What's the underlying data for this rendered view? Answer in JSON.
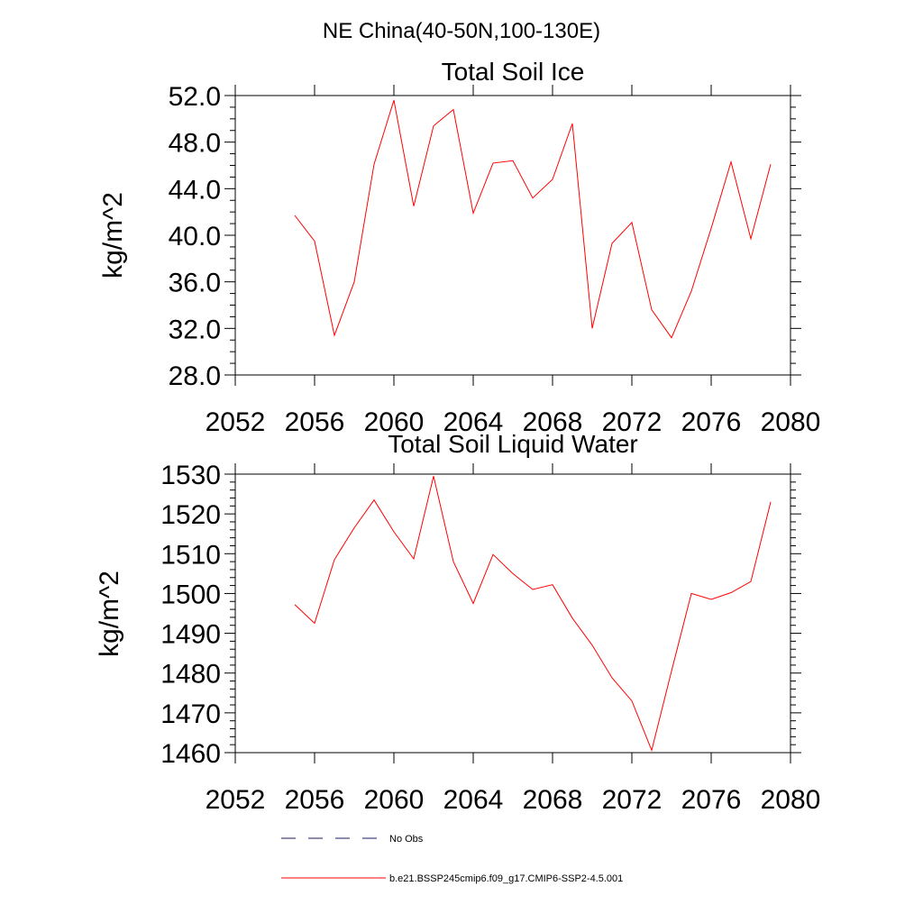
{
  "figure": {
    "title": "NE China(40-50N,100-130E)"
  },
  "legend": {
    "items": [
      {
        "label": "No Obs",
        "style": "dashed",
        "color": "#1a1a5e"
      },
      {
        "label": "b.e21.BSSP245cmip6.f09_g17.CMIP6-SSP2-4.5.001",
        "style": "solid",
        "color": "#ff0000"
      }
    ]
  },
  "chart_data": [
    {
      "type": "line",
      "title": "Total Soil Ice",
      "xlabel": "",
      "ylabel": "kg/m^2",
      "xlim": [
        2052,
        2080
      ],
      "ylim": [
        28,
        52
      ],
      "x_ticks": [
        "2052",
        "2056",
        "2060",
        "2064",
        "2068",
        "2072",
        "2076",
        "2080"
      ],
      "y_ticks": [
        "28.0",
        "32.0",
        "36.0",
        "40.0",
        "44.0",
        "48.0",
        "52.0"
      ],
      "grid": false,
      "series": [
        {
          "color": "#ff0000",
          "x": [
            2055,
            2056,
            2057,
            2058,
            2059,
            2060,
            2061,
            2062,
            2063,
            2064,
            2065,
            2066,
            2067,
            2068,
            2069,
            2070,
            2071,
            2072,
            2073,
            2074,
            2075,
            2076,
            2077,
            2078,
            2079
          ],
          "y": [
            41.7,
            39.5,
            31.4,
            36.0,
            46.1,
            51.6,
            42.5,
            49.4,
            50.8,
            41.9,
            46.2,
            46.4,
            43.2,
            44.8,
            49.6,
            32.0,
            39.3,
            41.1,
            33.6,
            31.2,
            35.2,
            40.6,
            46.3,
            39.7,
            46.1
          ]
        }
      ]
    },
    {
      "type": "line",
      "title": "Total Soil Liquid Water",
      "xlabel": "",
      "ylabel": "kg/m^2",
      "xlim": [
        2052,
        2080
      ],
      "ylim": [
        1460,
        1530
      ],
      "x_ticks": [
        "2052",
        "2056",
        "2060",
        "2064",
        "2068",
        "2072",
        "2076",
        "2080"
      ],
      "y_ticks": [
        "1460",
        "1470",
        "1480",
        "1490",
        "1500",
        "1510",
        "1520",
        "1530"
      ],
      "grid": false,
      "series": [
        {
          "color": "#ff0000",
          "x": [
            2055,
            2056,
            2057,
            2058,
            2059,
            2060,
            2061,
            2062,
            2063,
            2064,
            2065,
            2066,
            2067,
            2068,
            2069,
            2070,
            2071,
            2072,
            2073,
            2074,
            2075,
            2076,
            2077,
            2078,
            2079
          ],
          "y": [
            1497.2,
            1492.5,
            1508.5,
            1516.5,
            1523.5,
            1515.5,
            1508.7,
            1529.5,
            1508.0,
            1497.5,
            1509.8,
            1505.0,
            1501.0,
            1502.2,
            1493.8,
            1487.0,
            1478.8,
            1473.0,
            1460.6,
            1480.5,
            1500.0,
            1498.5,
            1500.2,
            1503.0,
            1523.0
          ]
        }
      ]
    }
  ]
}
